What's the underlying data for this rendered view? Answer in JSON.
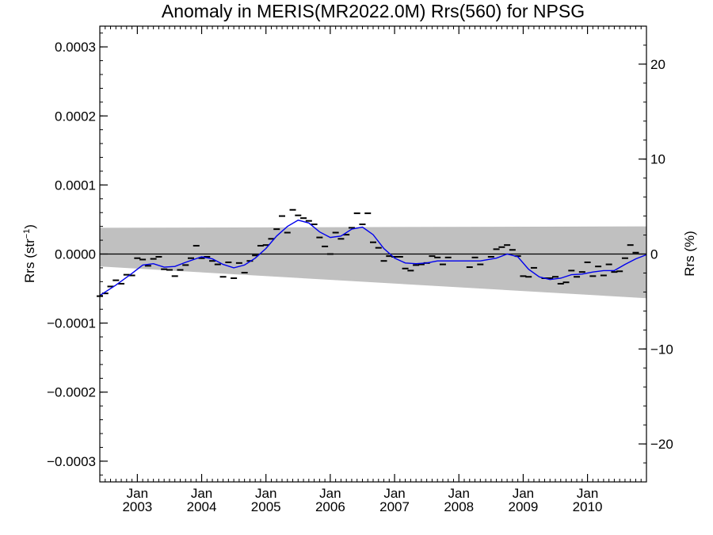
{
  "chart_data": {
    "type": "line",
    "title": "Anomaly in MERIS(MR2022.0M) Rrs(560) for NPSG",
    "ylabel_left_base": "Rrs (str",
    "ylabel_left_sup": "−1",
    "ylabel_left_close": ")",
    "ylabel_right": "Rrs (%)",
    "xlim": [
      "2002-06",
      "2010-12"
    ],
    "ylim": [
      -0.00033,
      0.00033
    ],
    "y2lim": [
      -24,
      24
    ],
    "yticks": [
      {
        "value": 0.0003,
        "label": "0.0003"
      },
      {
        "value": 0.0002,
        "label": "0.0002"
      },
      {
        "value": 0.0001,
        "label": "0.0001"
      },
      {
        "value": 0.0,
        "label": "0.0000"
      },
      {
        "value": -0.0001,
        "label": "−0.0001"
      },
      {
        "value": -0.0002,
        "label": "−0.0002"
      },
      {
        "value": -0.0003,
        "label": "−0.0003"
      }
    ],
    "y2ticks": [
      {
        "value": 20,
        "label": "20"
      },
      {
        "value": 10,
        "label": "10"
      },
      {
        "value": 0,
        "label": "0"
      },
      {
        "value": -10,
        "label": "−10"
      },
      {
        "value": -20,
        "label": "−20"
      }
    ],
    "xticks": [
      {
        "date": "2003-01",
        "month": "Jan",
        "year": "2003"
      },
      {
        "date": "2004-01",
        "month": "Jan",
        "year": "2004"
      },
      {
        "date": "2005-01",
        "month": "Jan",
        "year": "2005"
      },
      {
        "date": "2006-01",
        "month": "Jan",
        "year": "2006"
      },
      {
        "date": "2007-01",
        "month": "Jan",
        "year": "2007"
      },
      {
        "date": "2008-01",
        "month": "Jan",
        "year": "2008"
      },
      {
        "date": "2009-01",
        "month": "Jan",
        "year": "2009"
      },
      {
        "date": "2010-01",
        "month": "Jan",
        "year": "2010"
      }
    ],
    "uncertainty_band": {
      "start": {
        "date": "2002-06",
        "upper": 3.8e-05,
        "lower": -1.8e-05
      },
      "end": {
        "date": "2010-12",
        "upper": 4e-05,
        "lower": -6.4e-05
      }
    },
    "monthly_anomaly": [
      {
        "date": "2002-06",
        "value": -6.1e-05
      },
      {
        "date": "2002-07",
        "value": -5.7e-05
      },
      {
        "date": "2002-08",
        "value": -4.7e-05
      },
      {
        "date": "2002-09",
        "value": -3.8e-05
      },
      {
        "date": "2002-10",
        "value": -4.3e-05
      },
      {
        "date": "2002-11",
        "value": -3e-05
      },
      {
        "date": "2002-12",
        "value": -3.1e-05
      },
      {
        "date": "2003-01",
        "value": -6e-06
      },
      {
        "date": "2003-02",
        "value": -8e-06
      },
      {
        "date": "2003-03",
        "value": -1.7e-05
      },
      {
        "date": "2003-04",
        "value": -7e-06
      },
      {
        "date": "2003-05",
        "value": -4e-06
      },
      {
        "date": "2003-06",
        "value": -2.2e-05
      },
      {
        "date": "2003-07",
        "value": -2.3e-05
      },
      {
        "date": "2003-08",
        "value": -3.2e-05
      },
      {
        "date": "2003-09",
        "value": -2.3e-05
      },
      {
        "date": "2003-10",
        "value": -1.6e-05
      },
      {
        "date": "2003-11",
        "value": -6e-06
      },
      {
        "date": "2003-12",
        "value": 1.2e-05
      },
      {
        "date": "2004-01",
        "value": -6e-06
      },
      {
        "date": "2004-02",
        "value": -4e-06
      },
      {
        "date": "2004-03",
        "value": -1e-05
      },
      {
        "date": "2004-04",
        "value": -1.5e-05
      },
      {
        "date": "2004-05",
        "value": -3.3e-05
      },
      {
        "date": "2004-06",
        "value": -1.2e-05
      },
      {
        "date": "2004-07",
        "value": -3.5e-05
      },
      {
        "date": "2004-08",
        "value": -1.3e-05
      },
      {
        "date": "2004-09",
        "value": -2.7e-05
      },
      {
        "date": "2004-10",
        "value": -1e-05
      },
      {
        "date": "2004-11",
        "value": -2e-06
      },
      {
        "date": "2004-12",
        "value": 1.2e-05
      },
      {
        "date": "2005-01",
        "value": 1.3e-05
      },
      {
        "date": "2005-02",
        "value": 2.2e-05
      },
      {
        "date": "2005-03",
        "value": 3.6e-05
      },
      {
        "date": "2005-04",
        "value": 5.5e-05
      },
      {
        "date": "2005-05",
        "value": 3.1e-05
      },
      {
        "date": "2005-06",
        "value": 6.4e-05
      },
      {
        "date": "2005-07",
        "value": 5.6e-05
      },
      {
        "date": "2005-08",
        "value": 5.2e-05
      },
      {
        "date": "2005-09",
        "value": 4.8e-05
      },
      {
        "date": "2005-10",
        "value": 4.3e-05
      },
      {
        "date": "2005-11",
        "value": 2.4e-05
      },
      {
        "date": "2005-12",
        "value": 1.1e-05
      },
      {
        "date": "2006-01",
        "value": 0.0
      },
      {
        "date": "2006-02",
        "value": 3.1e-05
      },
      {
        "date": "2006-03",
        "value": 2.2e-05
      },
      {
        "date": "2006-04",
        "value": 2.8e-05
      },
      {
        "date": "2006-05",
        "value": 3.8e-05
      },
      {
        "date": "2006-06",
        "value": 5.9e-05
      },
      {
        "date": "2006-07",
        "value": 4.3e-05
      },
      {
        "date": "2006-08",
        "value": 5.9e-05
      },
      {
        "date": "2006-09",
        "value": 1.7e-05
      },
      {
        "date": "2006-10",
        "value": 9e-06
      },
      {
        "date": "2006-11",
        "value": -1e-05
      },
      {
        "date": "2006-12",
        "value": -3e-06
      },
      {
        "date": "2007-01",
        "value": -4e-06
      },
      {
        "date": "2007-02",
        "value": -4e-06
      },
      {
        "date": "2007-03",
        "value": -2.1e-05
      },
      {
        "date": "2007-04",
        "value": -2.4e-05
      },
      {
        "date": "2007-05",
        "value": -1.6e-05
      },
      {
        "date": "2007-06",
        "value": -1.5e-05
      },
      {
        "date": "2007-07",
        "value": -1.3e-05
      },
      {
        "date": "2007-08",
        "value": -3e-06
      },
      {
        "date": "2007-09",
        "value": -5e-06
      },
      {
        "date": "2007-10",
        "value": -1.5e-05
      },
      {
        "date": "2007-11",
        "value": -5e-06
      },
      {
        "date": "2008-03",
        "value": -1.9e-05
      },
      {
        "date": "2008-04",
        "value": -5e-06
      },
      {
        "date": "2008-05",
        "value": -1.5e-05
      },
      {
        "date": "2008-07",
        "value": -4e-06
      },
      {
        "date": "2008-08",
        "value": 7e-06
      },
      {
        "date": "2008-09",
        "value": 1e-05
      },
      {
        "date": "2008-10",
        "value": 1.3e-05
      },
      {
        "date": "2008-11",
        "value": 6e-06
      },
      {
        "date": "2008-12",
        "value": -3e-06
      },
      {
        "date": "2009-01",
        "value": -3.2e-05
      },
      {
        "date": "2009-02",
        "value": -3.3e-05
      },
      {
        "date": "2009-03",
        "value": -2e-05
      },
      {
        "date": "2009-05",
        "value": -3.5e-05
      },
      {
        "date": "2009-06",
        "value": -3.5e-05
      },
      {
        "date": "2009-07",
        "value": -3.3e-05
      },
      {
        "date": "2009-08",
        "value": -4.3e-05
      },
      {
        "date": "2009-09",
        "value": -4.1e-05
      },
      {
        "date": "2009-10",
        "value": -2.4e-05
      },
      {
        "date": "2009-11",
        "value": -3.3e-05
      },
      {
        "date": "2009-12",
        "value": -2.6e-05
      },
      {
        "date": "2010-01",
        "value": -1.2e-05
      },
      {
        "date": "2010-02",
        "value": -3.2e-05
      },
      {
        "date": "2010-03",
        "value": -1.8e-05
      },
      {
        "date": "2010-04",
        "value": -3.1e-05
      },
      {
        "date": "2010-05",
        "value": -1.5e-05
      },
      {
        "date": "2010-06",
        "value": -2.6e-05
      },
      {
        "date": "2010-07",
        "value": -2.5e-05
      },
      {
        "date": "2010-08",
        "value": -6e-06
      },
      {
        "date": "2010-09",
        "value": 1.3e-05
      },
      {
        "date": "2010-10",
        "value": 2e-06
      }
    ],
    "smoothed_anomaly": [
      {
        "date": "2002-06",
        "value": -6e-05
      },
      {
        "date": "2002-09",
        "value": -4.5e-05
      },
      {
        "date": "2002-12",
        "value": -2.8e-05
      },
      {
        "date": "2003-02",
        "value": -1.6e-05
      },
      {
        "date": "2003-04",
        "value": -1.4e-05
      },
      {
        "date": "2003-06",
        "value": -1.9e-05
      },
      {
        "date": "2003-08",
        "value": -1.8e-05
      },
      {
        "date": "2003-10",
        "value": -1.2e-05
      },
      {
        "date": "2004-01",
        "value": -4e-06
      },
      {
        "date": "2004-03",
        "value": -7e-06
      },
      {
        "date": "2004-05",
        "value": -1.5e-05
      },
      {
        "date": "2004-07",
        "value": -2e-05
      },
      {
        "date": "2004-09",
        "value": -1.6e-05
      },
      {
        "date": "2004-11",
        "value": -6e-06
      },
      {
        "date": "2005-01",
        "value": 8e-06
      },
      {
        "date": "2005-03",
        "value": 2.6e-05
      },
      {
        "date": "2005-05",
        "value": 4e-05
      },
      {
        "date": "2005-07",
        "value": 4.9e-05
      },
      {
        "date": "2005-09",
        "value": 4.5e-05
      },
      {
        "date": "2005-11",
        "value": 3.2e-05
      },
      {
        "date": "2006-01",
        "value": 2.4e-05
      },
      {
        "date": "2006-03",
        "value": 2.6e-05
      },
      {
        "date": "2006-05",
        "value": 3.6e-05
      },
      {
        "date": "2006-07",
        "value": 3.9e-05
      },
      {
        "date": "2006-09",
        "value": 2.8e-05
      },
      {
        "date": "2006-11",
        "value": 8e-06
      },
      {
        "date": "2007-01",
        "value": -6e-06
      },
      {
        "date": "2007-03",
        "value": -1.3e-05
      },
      {
        "date": "2007-05",
        "value": -1.4e-05
      },
      {
        "date": "2007-07",
        "value": -1.3e-05
      },
      {
        "date": "2007-09",
        "value": -1e-05
      },
      {
        "date": "2008-01",
        "value": -1e-05
      },
      {
        "date": "2008-05",
        "value": -1e-05
      },
      {
        "date": "2008-08",
        "value": -6e-06
      },
      {
        "date": "2008-10",
        "value": 0.0
      },
      {
        "date": "2008-12",
        "value": -4e-06
      },
      {
        "date": "2009-02",
        "value": -2.2e-05
      },
      {
        "date": "2009-04",
        "value": -3.3e-05
      },
      {
        "date": "2009-06",
        "value": -3.7e-05
      },
      {
        "date": "2009-08",
        "value": -3.5e-05
      },
      {
        "date": "2009-10",
        "value": -3e-05
      },
      {
        "date": "2009-12",
        "value": -2.9e-05
      },
      {
        "date": "2010-02",
        "value": -2.6e-05
      },
      {
        "date": "2010-04",
        "value": -2.4e-05
      },
      {
        "date": "2010-06",
        "value": -2.4e-05
      },
      {
        "date": "2010-08",
        "value": -1.5e-05
      },
      {
        "date": "2010-10",
        "value": -7e-06
      },
      {
        "date": "2010-12",
        "value": -1e-06
      }
    ],
    "colors": {
      "band": "#c0c0c0",
      "smoothed": "#0000ee",
      "monthly": "#000000",
      "axis": "#000000"
    },
    "grid": false,
    "legend": "none"
  }
}
